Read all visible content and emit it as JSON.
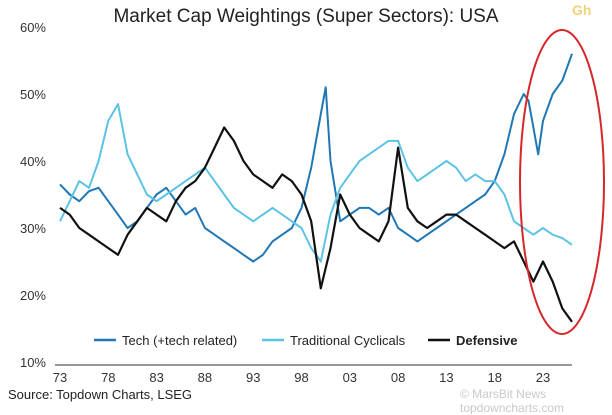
{
  "chart_data": {
    "type": "line",
    "title": "Market Cap Weightings (Super Sectors): USA",
    "xlabel": "",
    "ylabel": "",
    "x_ticks": [
      "73",
      "78",
      "83",
      "88",
      "93",
      "98",
      "03",
      "08",
      "13",
      "18",
      "23"
    ],
    "y_ticks": [
      "60%",
      "50%",
      "40%",
      "30%",
      "20%",
      "10%"
    ],
    "ylim": [
      10,
      60
    ],
    "xlim": [
      1973,
      2026
    ],
    "legend_position": "bottom",
    "grid": false,
    "series": [
      {
        "name": "Tech (+tech related)",
        "color": "#1f77b4",
        "x": [
          1973,
          1974,
          1975,
          1976,
          1977,
          1978,
          1979,
          1980,
          1981,
          1982,
          1983,
          1984,
          1985,
          1986,
          1987,
          1988,
          1989,
          1990,
          1991,
          1992,
          1993,
          1994,
          1995,
          1996,
          1997,
          1998,
          1999,
          2000,
          2000.5,
          2001,
          2002,
          2003,
          2004,
          2005,
          2006,
          2007,
          2008,
          2009,
          2010,
          2011,
          2012,
          2013,
          2014,
          2015,
          2016,
          2017,
          2018,
          2019,
          2020,
          2021,
          2021.5,
          2022,
          2022.5,
          2023,
          2024,
          2025,
          2026
        ],
        "values": [
          36.5,
          35,
          34,
          35.5,
          36,
          34,
          32,
          30,
          31,
          33,
          35,
          36,
          34,
          32,
          33,
          30,
          29,
          28,
          27,
          26,
          25,
          26,
          28,
          29,
          30,
          33,
          39,
          47,
          51,
          40,
          31,
          32,
          33,
          33,
          32,
          33,
          30,
          29,
          28,
          29,
          30,
          31,
          32,
          33,
          34,
          35,
          37,
          41,
          47,
          50,
          49,
          45,
          41,
          46,
          50,
          52,
          56
        ]
      },
      {
        "name": "Traditional Cyclicals",
        "color": "#5cc3e6",
        "x": [
          1973,
          1974,
          1975,
          1976,
          1977,
          1978,
          1979,
          1980,
          1981,
          1982,
          1983,
          1984,
          1985,
          1986,
          1987,
          1988,
          1989,
          1990,
          1991,
          1992,
          1993,
          1994,
          1995,
          1996,
          1997,
          1998,
          1999,
          2000,
          2001,
          2002,
          2003,
          2004,
          2005,
          2006,
          2007,
          2008,
          2009,
          2010,
          2011,
          2012,
          2013,
          2014,
          2015,
          2016,
          2017,
          2018,
          2019,
          2020,
          2021,
          2022,
          2023,
          2024,
          2025,
          2026
        ],
        "values": [
          31,
          34,
          37,
          36,
          40,
          46,
          48.5,
          41,
          38,
          35,
          34,
          35,
          36,
          37,
          38,
          39,
          37,
          35,
          33,
          32,
          31,
          32,
          33,
          32,
          31,
          30,
          27,
          25,
          32,
          36,
          38,
          40,
          41,
          42,
          43,
          43,
          39,
          37,
          38,
          39,
          40,
          39,
          37,
          38,
          37,
          37,
          35,
          31,
          30,
          29,
          30,
          29,
          28.5,
          27.5
        ]
      },
      {
        "name": "Defensive",
        "color": "#111111",
        "x": [
          1973,
          1974,
          1975,
          1976,
          1977,
          1978,
          1979,
          1980,
          1981,
          1982,
          1983,
          1984,
          1985,
          1986,
          1987,
          1988,
          1989,
          1990,
          1991,
          1992,
          1993,
          1994,
          1995,
          1996,
          1997,
          1998,
          1999,
          2000,
          2001,
          2002,
          2003,
          2004,
          2005,
          2006,
          2007,
          2008,
          2009,
          2010,
          2011,
          2012,
          2013,
          2014,
          2015,
          2016,
          2017,
          2018,
          2019,
          2020,
          2021,
          2022,
          2023,
          2024,
          2025,
          2026
        ],
        "values": [
          33,
          32,
          30,
          29,
          28,
          27,
          26,
          29,
          31,
          33,
          32,
          31,
          34,
          36,
          37,
          39,
          42,
          45,
          43,
          40,
          38,
          37,
          36,
          38,
          37,
          35,
          31,
          21,
          27,
          35,
          32,
          30,
          29,
          28,
          31,
          42,
          33,
          31,
          30,
          31,
          32,
          32,
          31,
          30,
          29,
          28,
          27,
          28,
          25,
          22,
          25,
          22,
          18,
          16
        ]
      }
    ]
  },
  "source": "Source: Topdown Charts, LSEG",
  "watermark": "© MarsBit News  topdowncharts.com",
  "corner_mark": "Gh",
  "annotation": {
    "shape": "ellipse",
    "color": "#d62728"
  }
}
